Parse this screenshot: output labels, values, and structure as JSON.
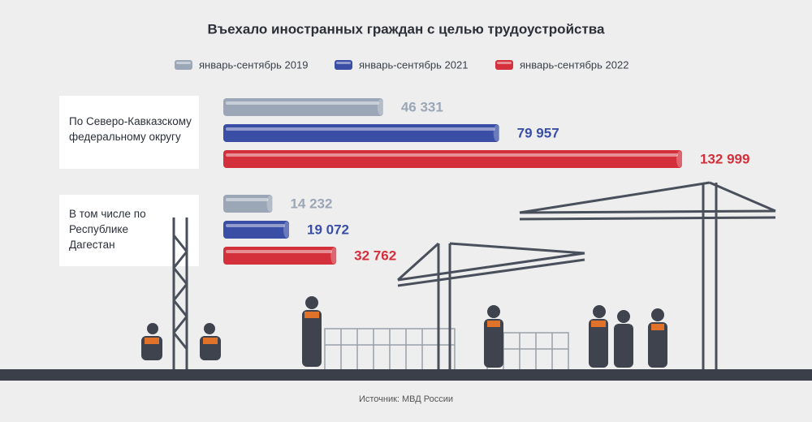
{
  "chart_data": {
    "type": "bar",
    "horizontal": true,
    "title": "Въехало иностранных граждан с целью трудоустройства",
    "categories": [
      "По Северо-Кавказскому федеральному округу",
      "В том числе по Республике Дагестан"
    ],
    "series": [
      {
        "name": "январь-сентябрь 2019",
        "color": "#9ba6b6",
        "values": [
          46331,
          14232
        ],
        "value_labels": [
          "46 331",
          "14 232"
        ]
      },
      {
        "name": "январь-сентябрь 2021",
        "color": "#3a4ea6",
        "values": [
          79957,
          19072
        ],
        "value_labels": [
          "79 957",
          "19 072"
        ]
      },
      {
        "name": "январь-сентябрь 2022",
        "color": "#d3303c",
        "values": [
          132999,
          32762
        ],
        "value_labels": [
          "132 999",
          "32 762"
        ]
      }
    ],
    "source": "Источник: МВД России"
  }
}
